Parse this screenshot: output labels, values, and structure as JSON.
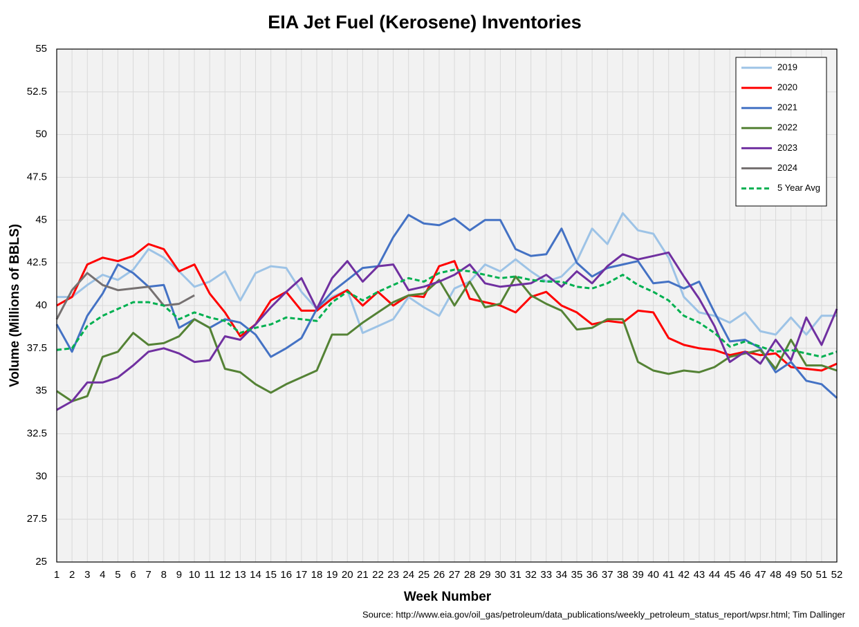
{
  "chart_data": {
    "type": "line",
    "title": "EIA Jet Fuel (Kerosene) Inventories",
    "x_label": "Week Number",
    "y_label": "Volume (Millions of BBLS)",
    "source": "Source: http://www.eia.gov/oil_gas/petroleum/data_publications/weekly_petroleum_status_report/wpsr.html; Tim Dallinger",
    "categories": [
      "1",
      "2",
      "3",
      "4",
      "5",
      "6",
      "7",
      "8",
      "9",
      "10",
      "11",
      "12",
      "13",
      "14",
      "15",
      "16",
      "17",
      "18",
      "19",
      "20",
      "21",
      "22",
      "23",
      "24",
      "25",
      "26",
      "27",
      "28",
      "29",
      "30",
      "31",
      "32",
      "33",
      "34",
      "35",
      "36",
      "37",
      "38",
      "39",
      "40",
      "41",
      "42",
      "43",
      "44",
      "45",
      "46",
      "47",
      "48",
      "49",
      "50",
      "51",
      "52"
    ],
    "ylim": [
      25,
      55
    ],
    "yticks": [
      25,
      27.5,
      30,
      32.5,
      35,
      37.5,
      40,
      42.5,
      45,
      47.5,
      50,
      52.5,
      55
    ],
    "grid": true,
    "legend": "upper right",
    "series": [
      {
        "name": "2019",
        "color": "#9dc3e6",
        "values": [
          40.5,
          40.5,
          41.2,
          41.8,
          41.5,
          42.1,
          43.3,
          42.8,
          42.0,
          41.1,
          41.4,
          42.0,
          40.3,
          41.9,
          42.3,
          42.2,
          40.8,
          39.8,
          40.5,
          40.9,
          38.4,
          38.8,
          39.2,
          40.5,
          39.9,
          39.4,
          41.0,
          41.4,
          42.4,
          42.0,
          42.7,
          42.0,
          41.4,
          41.7,
          42.6,
          44.5,
          43.6,
          45.4,
          44.4,
          44.2,
          42.8,
          40.5,
          39.6,
          39.4,
          39.0,
          39.6,
          38.5,
          38.3,
          39.3,
          38.3,
          39.4,
          39.4
        ]
      },
      {
        "name": "2020",
        "color": "#ff0000",
        "values": [
          40.0,
          40.5,
          42.4,
          42.8,
          42.6,
          42.9,
          43.6,
          43.3,
          42.0,
          42.4,
          40.7,
          39.6,
          38.2,
          38.9,
          40.3,
          40.8,
          39.7,
          39.7,
          40.4,
          40.9,
          40.0,
          40.8,
          40.0,
          40.6,
          40.5,
          42.3,
          42.6,
          40.4,
          40.2,
          40.0,
          39.6,
          40.5,
          40.8,
          40.0,
          39.6,
          38.9,
          39.1,
          39.0,
          39.7,
          39.6,
          38.1,
          37.7,
          37.5,
          37.4,
          37.1,
          37.3,
          37.1,
          37.2,
          36.4,
          36.3,
          36.2,
          36.6
        ]
      },
      {
        "name": "2021",
        "color": "#4472c4",
        "values": [
          38.9,
          37.3,
          39.4,
          40.7,
          42.4,
          41.9,
          41.1,
          41.2,
          38.7,
          39.2,
          38.7,
          39.2,
          39.0,
          38.3,
          37.0,
          37.5,
          38.1,
          39.8,
          40.8,
          41.5,
          42.2,
          42.3,
          44.0,
          45.3,
          44.8,
          44.7,
          45.1,
          44.4,
          45.0,
          45.0,
          43.3,
          42.9,
          43.0,
          44.5,
          42.5,
          41.7,
          42.2,
          42.4,
          42.6,
          41.3,
          41.4,
          41.0,
          41.4,
          39.6,
          37.9,
          38.0,
          37.5,
          36.1,
          36.7,
          35.6,
          35.4,
          34.6
        ]
      },
      {
        "name": "2022",
        "color": "#548235",
        "values": [
          35.0,
          34.4,
          34.7,
          37.0,
          37.3,
          38.4,
          37.7,
          37.8,
          38.2,
          39.2,
          38.7,
          36.3,
          36.1,
          35.4,
          34.9,
          35.4,
          35.8,
          36.2,
          38.3,
          38.3,
          39.0,
          39.6,
          40.2,
          40.6,
          40.7,
          41.5,
          40.0,
          41.4,
          39.9,
          40.1,
          41.7,
          40.6,
          40.1,
          39.7,
          38.6,
          38.7,
          39.2,
          39.2,
          36.7,
          36.2,
          36.0,
          36.2,
          36.1,
          36.4,
          37.0,
          37.2,
          37.4,
          36.3,
          38.0,
          36.5,
          36.5,
          36.2
        ]
      },
      {
        "name": "2023",
        "color": "#7030a0",
        "values": [
          33.9,
          34.4,
          35.5,
          35.5,
          35.8,
          36.5,
          37.3,
          37.5,
          37.2,
          36.7,
          36.8,
          38.2,
          38.0,
          38.9,
          39.9,
          40.8,
          41.6,
          39.8,
          41.6,
          42.6,
          41.4,
          42.3,
          42.4,
          40.9,
          41.1,
          41.4,
          41.8,
          42.4,
          41.3,
          41.1,
          41.2,
          41.3,
          41.8,
          41.1,
          42.0,
          41.3,
          42.3,
          43.0,
          42.7,
          42.9,
          43.1,
          41.7,
          40.4,
          38.8,
          36.7,
          37.3,
          36.6,
          38.0,
          36.8,
          39.3,
          37.7,
          39.8
        ]
      },
      {
        "name": "2024",
        "color": "#767171",
        "values": [
          39.2,
          40.9,
          41.9,
          41.2,
          40.9,
          41.0,
          41.1,
          40.0,
          40.1,
          40.6,
          null,
          null,
          null,
          null,
          null,
          null,
          null,
          null,
          null,
          null,
          null,
          null,
          null,
          null,
          null,
          null,
          null,
          null,
          null,
          null,
          null,
          null,
          null,
          null,
          null,
          null,
          null,
          null,
          null,
          null,
          null,
          null,
          null,
          null,
          null,
          null,
          null,
          null,
          null,
          null,
          null,
          null
        ]
      },
      {
        "name": "5 Year Avg",
        "color": "#00b050",
        "dashed": true,
        "values": [
          37.4,
          37.5,
          38.8,
          39.4,
          39.8,
          40.2,
          40.2,
          40.0,
          39.2,
          39.6,
          39.3,
          39.1,
          38.4,
          38.7,
          38.9,
          39.3,
          39.2,
          39.1,
          40.2,
          40.8,
          40.3,
          40.8,
          41.2,
          41.6,
          41.4,
          41.9,
          42.1,
          42.0,
          41.8,
          41.6,
          41.7,
          41.5,
          41.4,
          41.4,
          41.1,
          41.0,
          41.3,
          41.8,
          41.2,
          40.8,
          40.3,
          39.4,
          39.0,
          38.4,
          37.6,
          37.9,
          37.6,
          37.3,
          37.4,
          37.2,
          37.0,
          37.3
        ]
      }
    ]
  }
}
